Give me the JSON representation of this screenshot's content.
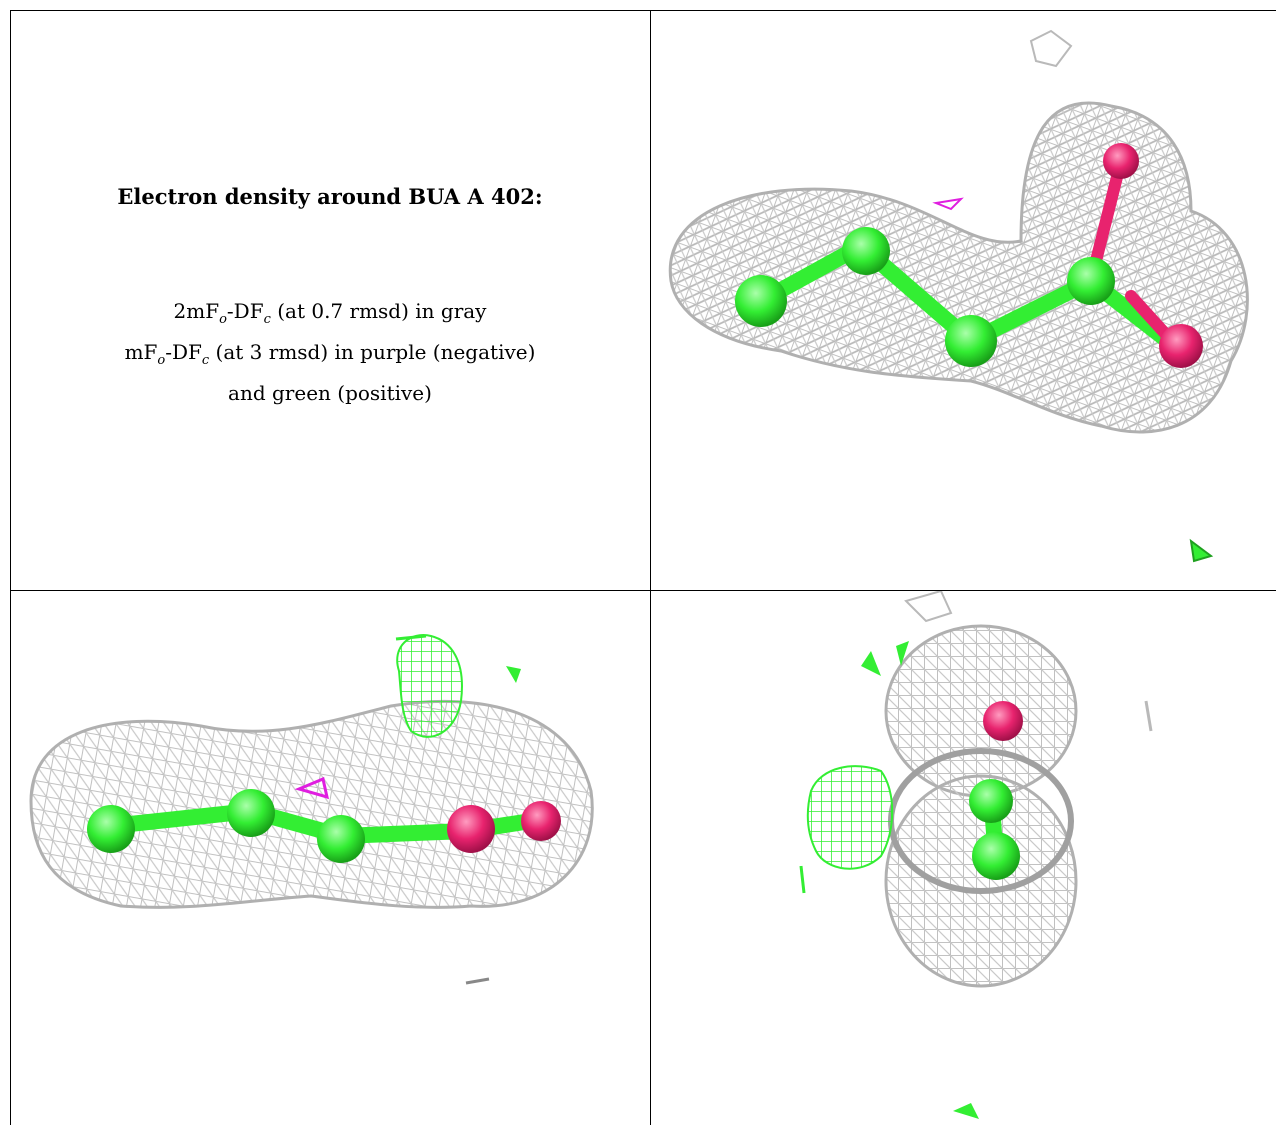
{
  "caption": {
    "title": "Electron density around BUA A 402:",
    "line1": {
      "pre": "2mF",
      "s1": "o",
      "mid": "-DF",
      "s2": "c",
      "post": " (at 0.7 rmsd) in gray"
    },
    "line2": {
      "pre": "mF",
      "s1": "o",
      "mid": "-DF",
      "s2": "c",
      "post": " (at 3 rmsd) in purple (negative)"
    },
    "line3": "and green (positive)"
  },
  "colors": {
    "mesh_2fofc": "#b9b9b9",
    "mesh_negative": "#e01ee0",
    "mesh_positive": "#33ee33",
    "carbon_atoms": "#33ee33",
    "oxygen_atoms": "#e8236e"
  },
  "panels": [
    "view-1",
    "view-2",
    "view-3"
  ]
}
